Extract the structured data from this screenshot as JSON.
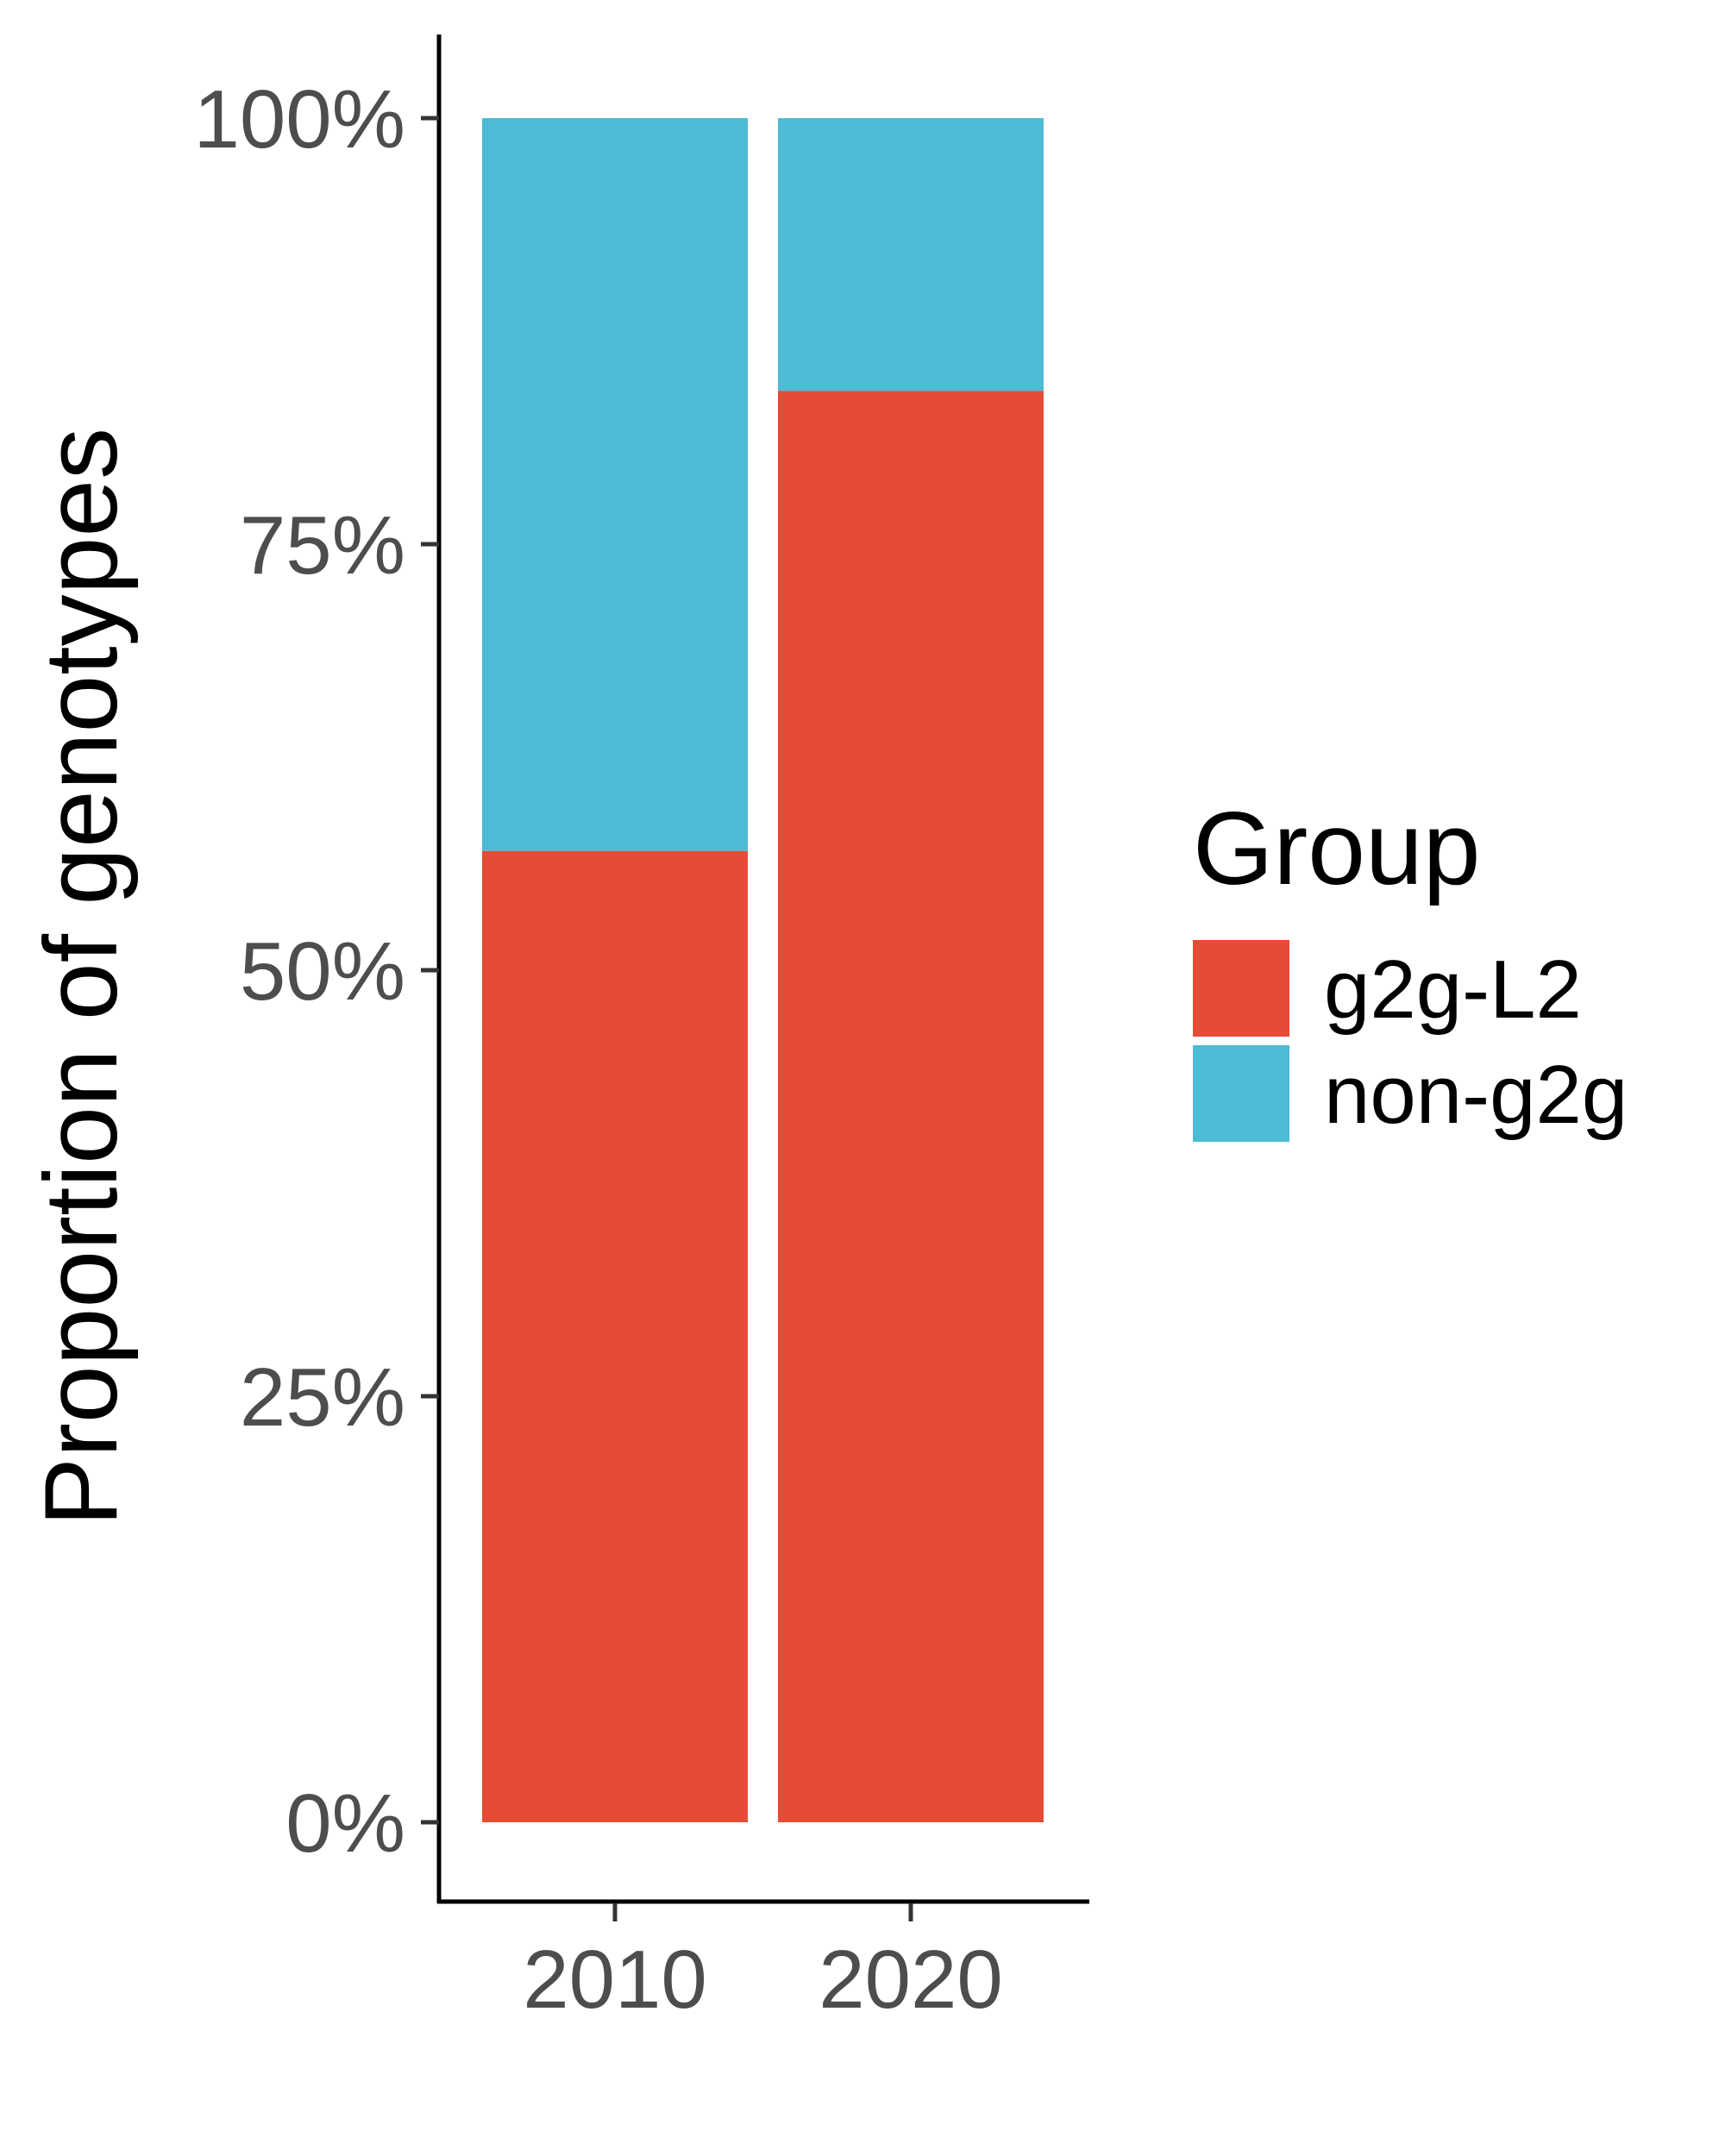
{
  "chart_data": {
    "type": "bar",
    "stacked": true,
    "categories": [
      "2010",
      "2020"
    ],
    "series": [
      {
        "name": "g2g-L2",
        "values": [
          0.57,
          0.84
        ],
        "color": "#E64B35"
      },
      {
        "name": "non-g2g",
        "values": [
          0.43,
          0.16
        ],
        "color": "#4DBBD5"
      }
    ],
    "title": "",
    "xlabel": "",
    "ylabel": "Proportion of genotypes",
    "ylim": [
      0,
      1
    ],
    "yticks": [
      0,
      0.25,
      0.5,
      0.75,
      1
    ],
    "ytick_labels": [
      "0%",
      "25%",
      "50%",
      "75%",
      "100%"
    ],
    "grid": false,
    "legend": {
      "title": "Group",
      "position": "right"
    }
  }
}
